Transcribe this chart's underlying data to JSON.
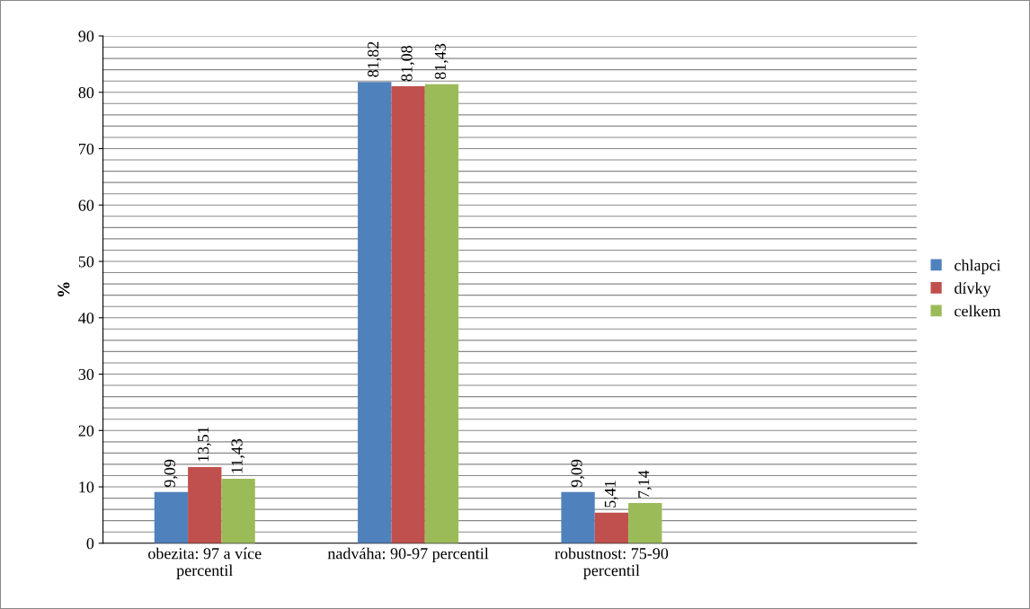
{
  "chart_data": {
    "type": "bar",
    "ylabel": "%",
    "categories": [
      "obezita: 97 a více\npercentil",
      "nadváha: 90-97 percentil",
      "robustnost: 75-90\npercentil",
      null
    ],
    "series": [
      {
        "name": "chlapci",
        "color": "#4f81bd",
        "values": [
          9.09,
          81.82,
          9.09,
          null
        ],
        "value_labels": [
          "9,09",
          "81,82",
          "9,09",
          null
        ]
      },
      {
        "name": "dívky",
        "color": "#c0504d",
        "values": [
          13.51,
          81.08,
          5.41,
          null
        ],
        "value_labels": [
          "13,51",
          "81,08",
          "5,41",
          null
        ]
      },
      {
        "name": "celkem",
        "color": "#9bbb59",
        "values": [
          11.43,
          81.43,
          7.14,
          null
        ],
        "value_labels": [
          "11,43",
          "81,43",
          "7,14",
          null
        ]
      }
    ],
    "ylim": [
      0,
      90
    ],
    "yticks": [
      0,
      {
        "value": 2,
        "label": null
      },
      {
        "value": 4,
        "label": null
      },
      {
        "value": 6,
        "label": null
      },
      {
        "value": 8,
        "label": null
      },
      10,
      {
        "value": 12,
        "label": null
      },
      {
        "value": 14,
        "label": null
      },
      {
        "value": 16,
        "label": null
      },
      {
        "value": 18,
        "label": null
      },
      20,
      {
        "value": 22,
        "label": null
      },
      {
        "value": 24,
        "label": null
      },
      {
        "value": 26,
        "label": null
      },
      {
        "value": 28,
        "label": null
      },
      30,
      {
        "value": 32,
        "label": null
      },
      {
        "value": 34,
        "label": null
      },
      {
        "value": 36,
        "label": null
      },
      {
        "value": 38,
        "label": null
      },
      40,
      {
        "value": 42,
        "label": null
      },
      {
        "value": 44,
        "label": null
      },
      {
        "value": 46,
        "label": null
      },
      {
        "value": 48,
        "label": null
      },
      50,
      {
        "value": 52,
        "label": null
      },
      {
        "value": 54,
        "label": null
      },
      {
        "value": 56,
        "label": null
      },
      {
        "value": 58,
        "label": null
      },
      60,
      {
        "value": 62,
        "label": null
      },
      {
        "value": 64,
        "label": null
      },
      {
        "value": 66,
        "label": null
      },
      {
        "value": 68,
        "label": null
      },
      70,
      {
        "value": 72,
        "label": null
      },
      {
        "value": 74,
        "label": null
      },
      {
        "value": 76,
        "label": null
      },
      {
        "value": 78,
        "label": null
      },
      80,
      {
        "value": 82,
        "label": null
      },
      {
        "value": 84,
        "label": null
      },
      {
        "value": 86,
        "label": null
      },
      {
        "value": 88,
        "label": null
      },
      90
    ],
    "grid": "y",
    "legend": "right"
  }
}
